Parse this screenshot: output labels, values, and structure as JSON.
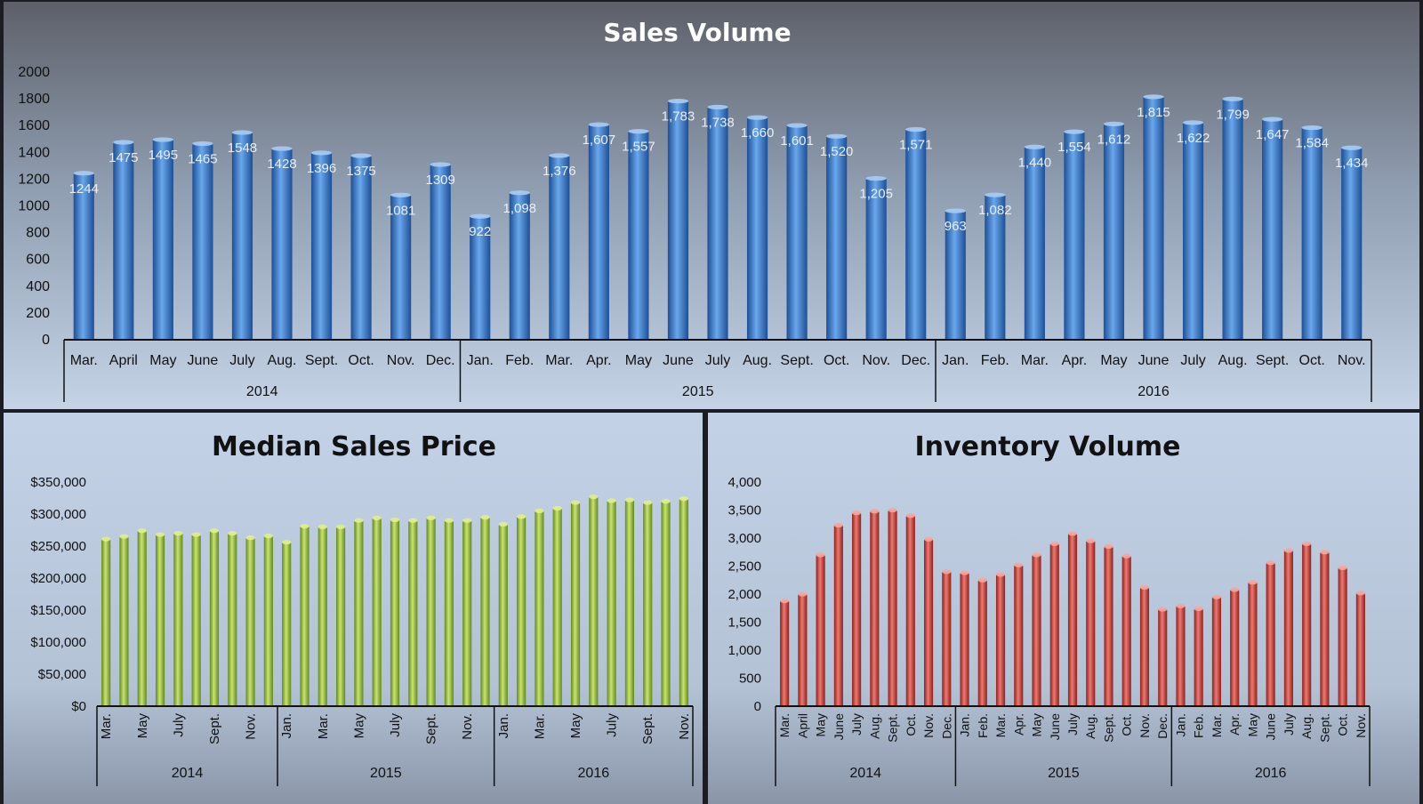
{
  "colors": {
    "sales_bar": "#3f7fd0",
    "price_bar": "#9cc13d",
    "inventory_bar": "#d0413a",
    "panel_top": "#5d6069",
    "panel_bottom": "#c5d3e6"
  },
  "chart_data": [
    {
      "type": "bar",
      "title": "Sales Volume",
      "ylim": [
        0,
        2000
      ],
      "yticks": [
        "0",
        "200",
        "400",
        "600",
        "800",
        "1000",
        "1200",
        "1400",
        "1600",
        "1800",
        "2000"
      ],
      "categories": [
        "Mar.",
        "April",
        "May",
        "June",
        "July",
        "Aug.",
        "Sept.",
        "Oct.",
        "Nov.",
        "Dec.",
        "Jan.",
        "Feb.",
        "Mar.",
        "Apr.",
        "May",
        "June",
        "July",
        "Aug.",
        "Sept.",
        "Oct.",
        "Nov.",
        "Dec.",
        "Jan.",
        "Feb.",
        "Mar.",
        "Apr.",
        "May",
        "June",
        "July",
        "Aug.",
        "Sept.",
        "Oct.",
        "Nov."
      ],
      "values": [
        1244,
        1475,
        1495,
        1465,
        1548,
        1428,
        1396,
        1375,
        1081,
        1309,
        922,
        1098,
        1376,
        1607,
        1557,
        1783,
        1738,
        1660,
        1601,
        1520,
        1205,
        1571,
        963,
        1082,
        1440,
        1554,
        1612,
        1815,
        1622,
        1799,
        1647,
        1584,
        1434
      ],
      "data_labels": [
        "1244",
        "1475",
        "1495",
        "1465",
        "1548",
        "1428",
        "1396",
        "1375",
        "1081",
        "1309",
        "922",
        "1,098",
        "1,376",
        "1,607",
        "1,557",
        "1,783",
        "1,738",
        "1,660",
        "1,601",
        "1,520",
        "1,205",
        "1,571",
        "963",
        "1,082",
        "1,440",
        "1,554",
        "1,612",
        "1,815",
        "1,622",
        "1,799",
        "1,647",
        "1,584",
        "1,434"
      ],
      "groups": [
        {
          "label": "2014",
          "count": 10
        },
        {
          "label": "2015",
          "count": 12
        },
        {
          "label": "2016",
          "count": 11
        }
      ]
    },
    {
      "type": "bar",
      "title": "Median Sales Price",
      "ylim": [
        0,
        350000
      ],
      "yticks": [
        "$0",
        "$50,000",
        "$100,000",
        "$150,000",
        "$200,000",
        "$250,000",
        "$300,000",
        "$350,000"
      ],
      "categories": [
        "Mar.",
        "",
        "May",
        "",
        "July",
        "",
        "Sept.",
        "",
        "Nov.",
        "",
        "Jan.",
        "",
        "Mar.",
        "",
        "May",
        "",
        "July",
        "",
        "Sept.",
        "",
        "Nov.",
        "",
        "Jan.",
        "",
        "Mar.",
        "",
        "May",
        "",
        "July",
        "",
        "Sept.",
        "",
        "Nov."
      ],
      "values": [
        261000,
        265000,
        274000,
        268000,
        270000,
        268000,
        274000,
        270000,
        263000,
        266000,
        256000,
        281000,
        280000,
        280000,
        290000,
        294000,
        291000,
        290000,
        294000,
        290000,
        290000,
        295000,
        284000,
        296000,
        305000,
        309000,
        318000,
        327000,
        321000,
        322000,
        318000,
        320000,
        324000
      ],
      "groups": [
        {
          "label": "2014",
          "count": 10
        },
        {
          "label": "2015",
          "count": 12
        },
        {
          "label": "2016",
          "count": 11
        }
      ]
    },
    {
      "type": "bar",
      "title": "Inventory Volume",
      "ylim": [
        0,
        4000
      ],
      "yticks": [
        "0",
        "500",
        "1,000",
        "1,500",
        "2,000",
        "2,500",
        "3,000",
        "3,500",
        "4,000"
      ],
      "categories": [
        "Mar.",
        "April",
        "May",
        "June",
        "July",
        "Aug.",
        "Sept.",
        "Oct.",
        "Nov.",
        "Dec.",
        "Jan.",
        "Feb.",
        "Mar.",
        "Apr.",
        "May",
        "June",
        "July",
        "Aug.",
        "Sept.",
        "Oct.",
        "Nov.",
        "Dec.",
        "Jan.",
        "Feb.",
        "Mar.",
        "Apr.",
        "May",
        "June",
        "July",
        "Aug.",
        "Sept.",
        "Oct.",
        "Nov."
      ],
      "values": [
        1880,
        2000,
        2700,
        3230,
        3450,
        3480,
        3500,
        3400,
        2980,
        2400,
        2380,
        2250,
        2350,
        2520,
        2700,
        2900,
        3080,
        2950,
        2850,
        2680,
        2120,
        1730,
        1790,
        1740,
        1950,
        2080,
        2210,
        2560,
        2780,
        2900,
        2750,
        2470,
        2020
      ],
      "groups": [
        {
          "label": "2014",
          "count": 10
        },
        {
          "label": "2015",
          "count": 12
        },
        {
          "label": "2016",
          "count": 11
        }
      ]
    }
  ]
}
